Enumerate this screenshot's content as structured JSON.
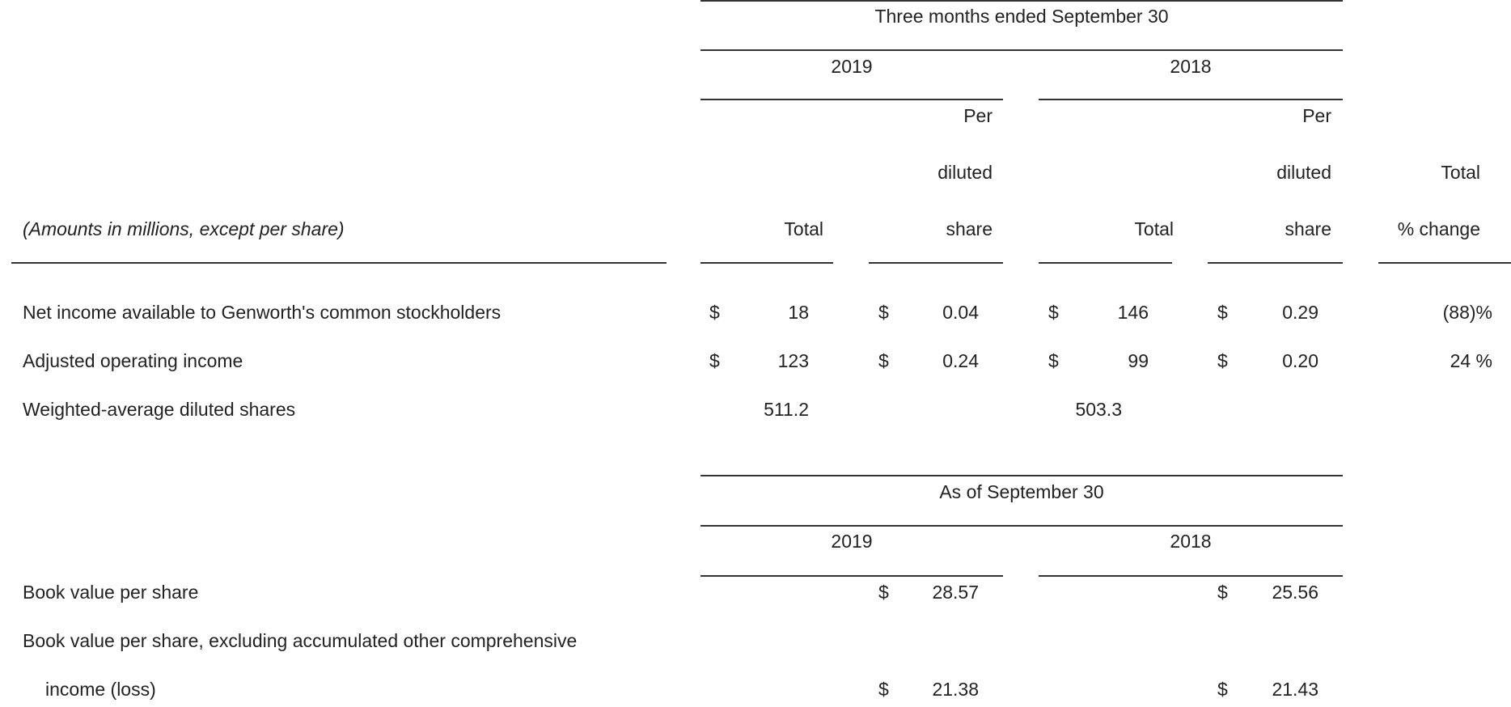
{
  "table1": {
    "header": "Three months ended September 30",
    "year_2019": "2019",
    "year_2018": "2018",
    "per_2019": "Per",
    "diluted_2019": "diluted",
    "share_2019": "share",
    "per_2018": "Per",
    "diluted_2018": "diluted",
    "share_2018": "share",
    "total_2019": "Total",
    "total_2018": "Total",
    "total_change_line1": "Total",
    "total_change_line2": "% change",
    "caption": "(Amounts in millions, except per share)",
    "rows": [
      {
        "label": "Net income available to Genworth's common stockholders",
        "cur1": "$",
        "total_2019": "18",
        "cur2": "$",
        "per_share_2019": "0.04",
        "cur3": "$",
        "total_2018": "146",
        "cur4": "$",
        "per_share_2018": "0.29",
        "change": "(88)%"
      },
      {
        "label": "Adjusted operating income",
        "cur1": "$",
        "total_2019": "123",
        "cur2": "$",
        "per_share_2019": "0.24",
        "cur3": "$",
        "total_2018": "99",
        "cur4": "$",
        "per_share_2018": "0.20",
        "change": "24 %"
      },
      {
        "label": "Weighted-average diluted shares",
        "total_2019": "511.2",
        "total_2018": "503.3"
      }
    ]
  },
  "table2": {
    "header": "As of September 30",
    "year_2019": "2019",
    "year_2018": "2018",
    "rows": [
      {
        "label": "Book value per share",
        "cur_2019": "$",
        "value_2019": "28.57",
        "cur_2018": "$",
        "value_2018": "25.56"
      },
      {
        "label_line1": "Book value per share, excluding accumulated other comprehensive",
        "label_line2": "income (loss)",
        "cur_2019": "$",
        "value_2019": "21.38",
        "cur_2018": "$",
        "value_2018": "21.43"
      }
    ]
  }
}
